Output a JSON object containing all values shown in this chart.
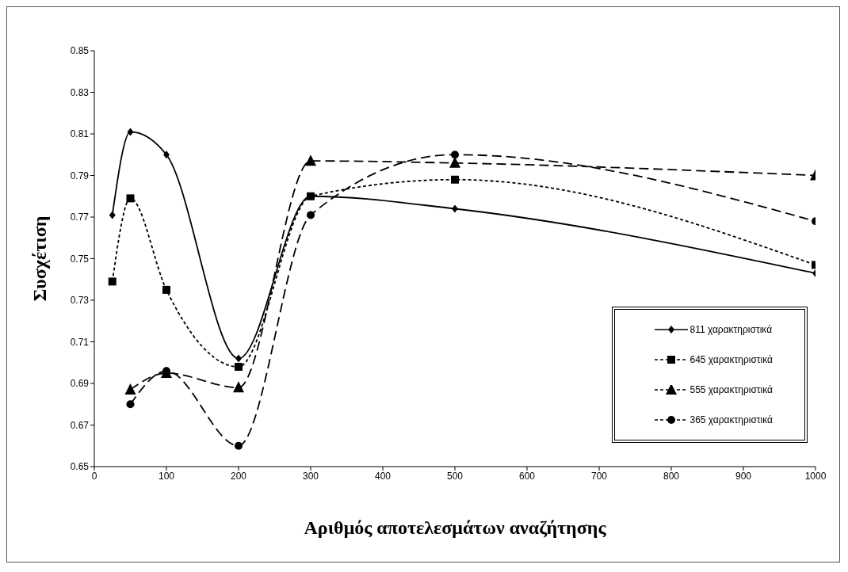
{
  "chart_data": {
    "type": "line",
    "xlabel": "Αριθμός αποτελεσμάτων αναζήτησης",
    "ylabel": "Συσχέτιση",
    "x": [
      25,
      50,
      100,
      200,
      300,
      500,
      1000
    ],
    "series": [
      {
        "name": "811 χαρακτηριστικά",
        "color": "#000000",
        "marker": "diamond",
        "line_style": "solid",
        "values": [
          0.771,
          0.811,
          0.8,
          0.702,
          0.78,
          0.774,
          0.743
        ]
      },
      {
        "name": "645 χαρακτηριστικά",
        "color": "#000000",
        "marker": "square",
        "line_style": "dotted",
        "values": [
          0.739,
          0.779,
          0.735,
          0.698,
          0.78,
          0.788,
          0.747
        ]
      },
      {
        "name": "555 χαρακτηριστικά",
        "color": "#000000",
        "marker": "triangle",
        "line_style": "dashed",
        "values": [
          null,
          0.687,
          0.695,
          0.688,
          0.797,
          0.796,
          0.79
        ]
      },
      {
        "name": "365 χαρακτηριστικά",
        "color": "#000000",
        "marker": "circle",
        "line_style": "dashed",
        "values": [
          null,
          0.68,
          0.696,
          0.66,
          0.771,
          0.8,
          0.768
        ]
      }
    ],
    "xlim": [
      0,
      1000
    ],
    "xticks": [
      0,
      100,
      200,
      300,
      400,
      500,
      600,
      700,
      800,
      900,
      1000
    ],
    "ylim": [
      0.65,
      0.85
    ],
    "yticks": [
      0.65,
      0.67,
      0.69,
      0.71,
      0.73,
      0.75,
      0.77,
      0.79,
      0.81,
      0.83,
      0.85
    ],
    "grid": false,
    "legend": "bottom right"
  }
}
